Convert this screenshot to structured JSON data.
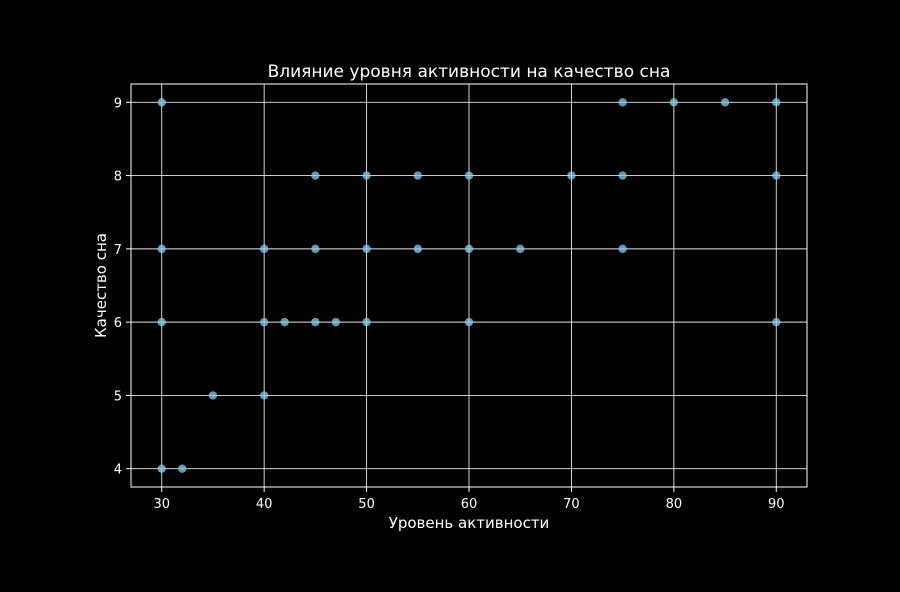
{
  "chart_data": {
    "type": "scatter",
    "title": "Влияние уровня активности на качество сна",
    "xlabel": "Уровень активности",
    "ylabel": "Качество сна",
    "xlim": [
      27,
      93
    ],
    "ylim": [
      3.75,
      9.25
    ],
    "xticks": [
      30,
      40,
      50,
      60,
      70,
      80,
      90
    ],
    "yticks": [
      4,
      5,
      6,
      7,
      8,
      9
    ],
    "grid": true,
    "point_color": "#87CEEB",
    "background_color": "#000000",
    "foreground_color": "#ffffff",
    "points": [
      {
        "x": 30,
        "y": 9
      },
      {
        "x": 30,
        "y": 7
      },
      {
        "x": 30,
        "y": 6
      },
      {
        "x": 30,
        "y": 4
      },
      {
        "x": 32,
        "y": 4
      },
      {
        "x": 35,
        "y": 5
      },
      {
        "x": 40,
        "y": 7
      },
      {
        "x": 40,
        "y": 6
      },
      {
        "x": 40,
        "y": 5
      },
      {
        "x": 42,
        "y": 6
      },
      {
        "x": 45,
        "y": 8
      },
      {
        "x": 45,
        "y": 7
      },
      {
        "x": 45,
        "y": 6
      },
      {
        "x": 47,
        "y": 6
      },
      {
        "x": 50,
        "y": 8
      },
      {
        "x": 50,
        "y": 7
      },
      {
        "x": 50,
        "y": 6
      },
      {
        "x": 55,
        "y": 8
      },
      {
        "x": 55,
        "y": 7
      },
      {
        "x": 60,
        "y": 8
      },
      {
        "x": 60,
        "y": 7
      },
      {
        "x": 60,
        "y": 6
      },
      {
        "x": 65,
        "y": 7
      },
      {
        "x": 70,
        "y": 8
      },
      {
        "x": 75,
        "y": 9
      },
      {
        "x": 75,
        "y": 8
      },
      {
        "x": 75,
        "y": 7
      },
      {
        "x": 80,
        "y": 9
      },
      {
        "x": 85,
        "y": 9
      },
      {
        "x": 90,
        "y": 9
      },
      {
        "x": 90,
        "y": 8
      },
      {
        "x": 90,
        "y": 6
      }
    ]
  }
}
